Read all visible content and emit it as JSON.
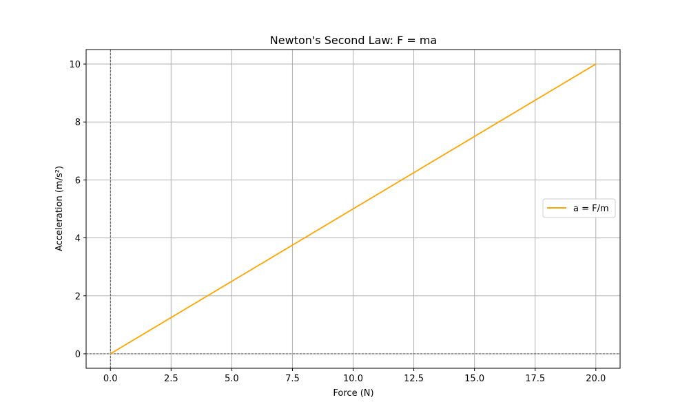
{
  "chart_data": {
    "type": "line",
    "title": "Newton's Second Law: F = ma",
    "xlabel": "Force (N)",
    "ylabel": "Acceleration (m/s²)",
    "xlim": [
      -1,
      21
    ],
    "ylim": [
      -0.5,
      10.5
    ],
    "xticks": [
      0.0,
      2.5,
      5.0,
      7.5,
      10.0,
      12.5,
      15.0,
      17.5,
      20.0
    ],
    "xtick_labels": [
      "0.0",
      "2.5",
      "5.0",
      "7.5",
      "10.0",
      "12.5",
      "15.0",
      "17.5",
      "20.0"
    ],
    "yticks": [
      0,
      2,
      4,
      6,
      8,
      10
    ],
    "ytick_labels": [
      "0",
      "2",
      "4",
      "6",
      "8",
      "10"
    ],
    "grid": true,
    "reference_lines": {
      "x0": true,
      "y0": true
    },
    "legend_position": "center-right",
    "series": [
      {
        "name": "a = F/m",
        "color": "#ffa500",
        "x": [
          0,
          20
        ],
        "y": [
          0,
          10
        ]
      }
    ]
  }
}
